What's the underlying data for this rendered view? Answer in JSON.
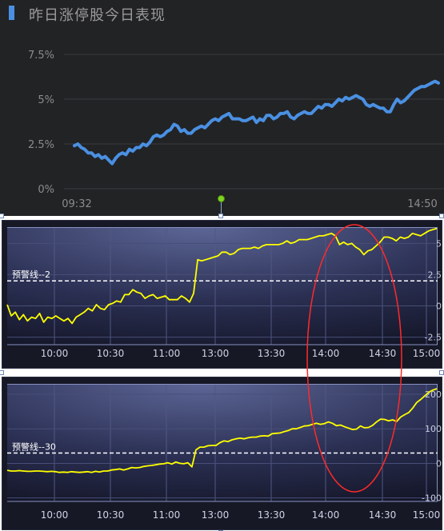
{
  "title": "昨日涨停股今日表现",
  "colors": {
    "top_bg": "#222325",
    "accent": "#4a90e2",
    "line_blue": "#4a90e2",
    "line_yellow": "#ffff00",
    "warning_line": "#ffffff",
    "highlight_ellipse": "#ff2a2a"
  },
  "chart_data": [
    {
      "type": "line",
      "title": "昨日涨停股今日表现",
      "x_tick_labels": [
        "09:32",
        "14:50"
      ],
      "y_tick_labels": [
        "7.5%",
        "5%",
        "2.5%",
        "0%"
      ],
      "y_ticks": [
        7.5,
        5,
        2.5,
        0
      ],
      "ylim": [
        0,
        7.5
      ],
      "grid": true,
      "series": [
        {
          "values": [
            2.4,
            2.5,
            2.3,
            2.2,
            2.0,
            2.0,
            1.8,
            1.9,
            1.7,
            1.8,
            1.6,
            1.4,
            1.7,
            1.9,
            2.0,
            1.9,
            2.2,
            2.1,
            2.3,
            2.3,
            2.5,
            2.4,
            2.6,
            2.9,
            3.0,
            2.9,
            3.0,
            3.2,
            3.3,
            3.6,
            3.5,
            3.2,
            3.3,
            3.1,
            3.1,
            3.3,
            3.4,
            3.5,
            3.4,
            3.6,
            3.8,
            3.9,
            3.8,
            4.0,
            4.1,
            4.2,
            3.9,
            3.9,
            3.9,
            3.8,
            3.8,
            3.9,
            4.0,
            3.7,
            3.9,
            3.8,
            4.1,
            4.1,
            3.9,
            4.0,
            4.2,
            4.2,
            4.3,
            4.0,
            3.9,
            4.1,
            4.2,
            4.3,
            4.2,
            4.2,
            4.4,
            4.6,
            4.5,
            4.7,
            4.7,
            4.6,
            4.8,
            5.0,
            4.9,
            5.1,
            5.0,
            5.1,
            5.2,
            5.1,
            5.0,
            4.7,
            4.6,
            4.7,
            4.6,
            4.5,
            4.5,
            4.3,
            4.3,
            4.7,
            5.0,
            4.8,
            4.9,
            5.1,
            5.3,
            5.5,
            5.6,
            5.7,
            5.7,
            5.8,
            5.9,
            6.0,
            5.9
          ]
        }
      ]
    },
    {
      "type": "line",
      "x_tick_labels": [
        "10:00",
        "10:30",
        "11:00",
        "13:00",
        "13:30",
        "14:00",
        "14:30",
        "15:00"
      ],
      "y_tick_labels": [
        "5",
        "2.5",
        "0",
        "-2.5"
      ],
      "y_ticks": [
        5,
        2.5,
        0,
        -2.5
      ],
      "ylim": [
        -3.1,
        6.3
      ],
      "warning_line": {
        "label": "预警线--2",
        "value": 2
      },
      "series": [
        {
          "values": [
            0.1,
            -0.8,
            -0.5,
            -1.1,
            -0.7,
            -1.2,
            -0.9,
            -1.0,
            -0.6,
            -1.3,
            -0.9,
            -1.0,
            -0.8,
            -1.0,
            -1.2,
            -1.0,
            -1.4,
            -0.9,
            -0.7,
            -0.5,
            -0.2,
            -0.4,
            0.1,
            -0.2,
            -0.3,
            0.1,
            0.2,
            0.4,
            0.3,
            0.9,
            0.9,
            1.3,
            1.1,
            1.0,
            0.6,
            0.8,
            0.9,
            0.6,
            0.7,
            0.8,
            0.5,
            0.5,
            0.5,
            0.8,
            0.6,
            0.3,
            1.0,
            3.7,
            3.6,
            3.7,
            3.8,
            3.9,
            4.0,
            4.3,
            4.3,
            4.1,
            4.2,
            4.5,
            4.6,
            4.6,
            4.6,
            4.7,
            4.6,
            4.8,
            4.9,
            4.9,
            4.9,
            4.9,
            5.0,
            5.2,
            5.0,
            5.1,
            5.3,
            5.3,
            5.3,
            5.4,
            5.5,
            5.6,
            5.6,
            5.7,
            5.8,
            5.6,
            4.9,
            5.1,
            4.9,
            5.0,
            4.7,
            4.5,
            4.1,
            4.4,
            4.5,
            4.8,
            5.1,
            5.5,
            5.5,
            5.4,
            5.2,
            5.5,
            5.4,
            5.5,
            5.8,
            5.7,
            5.6,
            5.8,
            6.0,
            6.1,
            6.2
          ]
        }
      ]
    },
    {
      "type": "line",
      "x_tick_labels": [
        "10:00",
        "10:30",
        "11:00",
        "13:00",
        "13:30",
        "14:00",
        "14:30",
        "15:00"
      ],
      "y_tick_labels": [
        "200",
        "100",
        "0",
        "-100"
      ],
      "y_ticks": [
        200,
        100,
        0,
        -100
      ],
      "ylim": [
        -110,
        230
      ],
      "warning_line": {
        "label": "预警线--30",
        "value": 30
      },
      "series": [
        {
          "values": [
            -20,
            -22,
            -22,
            -21,
            -22,
            -23,
            -23,
            -22,
            -22,
            -23,
            -24,
            -23,
            -24,
            -26,
            -25,
            -26,
            -24,
            -25,
            -26,
            -25,
            -24,
            -26,
            -23,
            -25,
            -22,
            -22,
            -19,
            -18,
            -16,
            -19,
            -16,
            -12,
            -13,
            -12,
            -9,
            -7,
            -6,
            -4,
            -2,
            -1,
            2,
            -2,
            4,
            0,
            -1,
            2,
            -10,
            39,
            47,
            47,
            51,
            52,
            52,
            60,
            65,
            63,
            68,
            71,
            73,
            71,
            74,
            76,
            76,
            79,
            80,
            79,
            86,
            87,
            88,
            92,
            95,
            100,
            100,
            104,
            108,
            109,
            113,
            116,
            113,
            115,
            120,
            116,
            109,
            111,
            106,
            102,
            98,
            99,
            108,
            103,
            104,
            110,
            120,
            128,
            127,
            123,
            126,
            121,
            134,
            141,
            147,
            160,
            176,
            185,
            195,
            206,
            212,
            216
          ]
        }
      ]
    }
  ]
}
